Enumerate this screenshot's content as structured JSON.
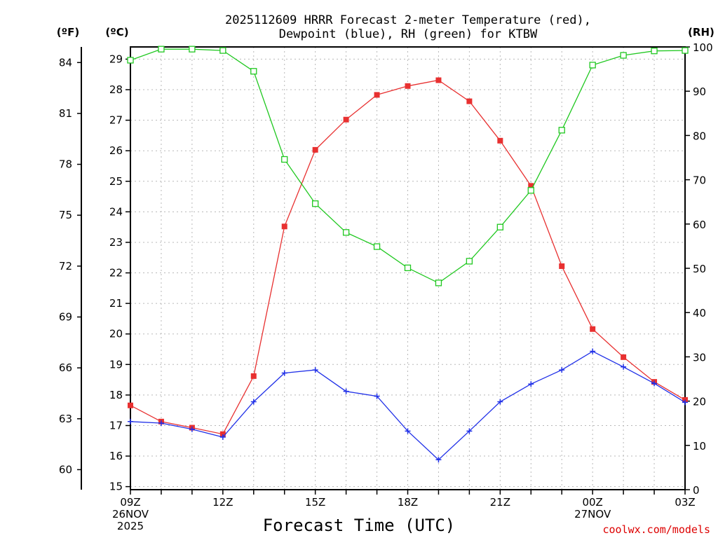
{
  "chart_data": {
    "type": "line",
    "title_line1": "2025112609 HRRR Forecast 2-meter Temperature (red),",
    "title_line2": "Dewpoint (blue), RH (green) for KTBW",
    "xlabel": "Forecast Time (UTC)",
    "credit": "coolwx.com/models",
    "units": {
      "fahrenheit": "(ºF)",
      "celsius": "(ºC)",
      "rh": "(RH)"
    },
    "x_hours": [
      0,
      1,
      2,
      3,
      4,
      5,
      6,
      7,
      8,
      9,
      10,
      11,
      12,
      13,
      14,
      15,
      16,
      17,
      18
    ],
    "x_ticks": [
      {
        "hour": 0,
        "lines": [
          "09Z",
          "26NOV",
          "2025"
        ]
      },
      {
        "hour": 3,
        "lines": [
          "12Z"
        ]
      },
      {
        "hour": 6,
        "lines": [
          "15Z"
        ]
      },
      {
        "hour": 9,
        "lines": [
          "18Z"
        ]
      },
      {
        "hour": 12,
        "lines": [
          "21Z"
        ]
      },
      {
        "hour": 15,
        "lines": [
          "00Z",
          "27NOV"
        ]
      },
      {
        "hour": 18,
        "lines": [
          "03Z"
        ]
      }
    ],
    "ylim_celsius": [
      14.9,
      29.4
    ],
    "ylim_rh": [
      0,
      100
    ],
    "yticks_celsius": [
      "15",
      "16",
      "17",
      "18",
      "19",
      "20",
      "21",
      "22",
      "23",
      "24",
      "25",
      "26",
      "27",
      "28",
      "29"
    ],
    "yticks_fahrenheit": [
      "60",
      "63",
      "66",
      "69",
      "72",
      "75",
      "78",
      "81",
      "84"
    ],
    "yticks_rh": [
      "0",
      "10",
      "20",
      "30",
      "40",
      "50",
      "60",
      "70",
      "80",
      "90",
      "100"
    ],
    "series": [
      {
        "name": "Temperature",
        "color": "#e83030",
        "marker": "square-filled",
        "axis": "celsius",
        "values": [
          17.66,
          17.13,
          16.93,
          16.72,
          18.62,
          23.52,
          26.03,
          27.02,
          27.83,
          28.12,
          28.31,
          27.62,
          26.33,
          24.85,
          22.22,
          20.16,
          19.24,
          18.43,
          17.84
        ]
      },
      {
        "name": "Dewpoint",
        "color": "#2030e8",
        "marker": "plus",
        "axis": "celsius",
        "values": [
          17.13,
          17.08,
          16.88,
          16.62,
          17.78,
          18.72,
          18.82,
          18.12,
          17.96,
          16.82,
          15.88,
          16.82,
          17.78,
          18.36,
          18.82,
          19.43,
          18.92,
          18.38,
          17.76
        ]
      },
      {
        "name": "RH",
        "color": "#20c820",
        "marker": "square-open",
        "axis": "rh",
        "values": [
          97,
          99.5,
          99.5,
          99.2,
          94.5,
          74.6,
          64.6,
          58.1,
          54.9,
          50.1,
          46.7,
          51.6,
          59.3,
          67.6,
          81.2,
          95.9,
          98.1,
          99.1,
          99.2
        ]
      }
    ]
  }
}
